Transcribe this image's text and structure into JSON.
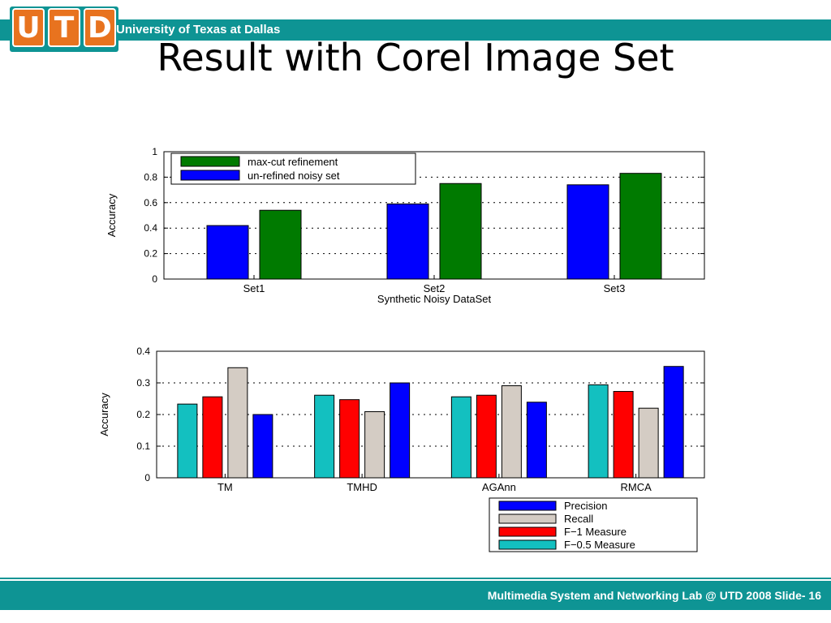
{
  "header": {
    "logo_letters": [
      "U",
      "T",
      "D"
    ],
    "university": "University of Texas at Dallas",
    "title": "Result with Corel Image Set"
  },
  "footer": {
    "text": "Multimedia System and Networking Lab @ UTD 2008 Slide- 16"
  },
  "colors": {
    "teal": "#0e9494",
    "logo_orange": "#e8731f"
  },
  "chart_data": [
    {
      "type": "bar",
      "xlabel": "Synthetic Noisy DataSet",
      "ylabel": "Accuracy",
      "ylim": [
        0,
        1
      ],
      "yticks": [
        "0",
        "0.2",
        "0.4",
        "0.6",
        "0.8",
        "1"
      ],
      "categories": [
        "Set1",
        "Set2",
        "Set3"
      ],
      "grid": true,
      "legend_position": "top-left",
      "series": [
        {
          "name": "un-refined noisy set",
          "color": "#0000ff",
          "values": [
            0.42,
            0.59,
            0.74
          ]
        },
        {
          "name": "max-cut refinement",
          "color": "#007a00",
          "values": [
            0.54,
            0.75,
            0.83
          ]
        }
      ],
      "legend_order": [
        "max-cut refinement",
        "un-refined noisy set"
      ]
    },
    {
      "type": "bar",
      "xlabel": "",
      "ylabel": "Accuracy",
      "ylim": [
        0,
        0.4
      ],
      "yticks": [
        "0",
        "0.1",
        "0.2",
        "0.3",
        "0.4"
      ],
      "categories": [
        "TM",
        "TMHD",
        "AGAnn",
        "RMCA"
      ],
      "grid": true,
      "legend_position": "below-right",
      "series": [
        {
          "name": "F−0.5 Measure",
          "color": "#13c0c0",
          "values": [
            0.233,
            0.261,
            0.256,
            0.294
          ]
        },
        {
          "name": "F−1 Measure",
          "color": "#ff0000",
          "values": [
            0.256,
            0.247,
            0.261,
            0.273
          ]
        },
        {
          "name": "Recall",
          "color": "#d4ccc4",
          "values": [
            0.348,
            0.209,
            0.291,
            0.22
          ]
        },
        {
          "name": "Precision",
          "color": "#0000ff",
          "values": [
            0.2,
            0.3,
            0.239,
            0.352
          ]
        }
      ],
      "legend_order": [
        "Precision",
        "Recall",
        "F−1 Measure",
        "F−0.5 Measure"
      ]
    }
  ]
}
